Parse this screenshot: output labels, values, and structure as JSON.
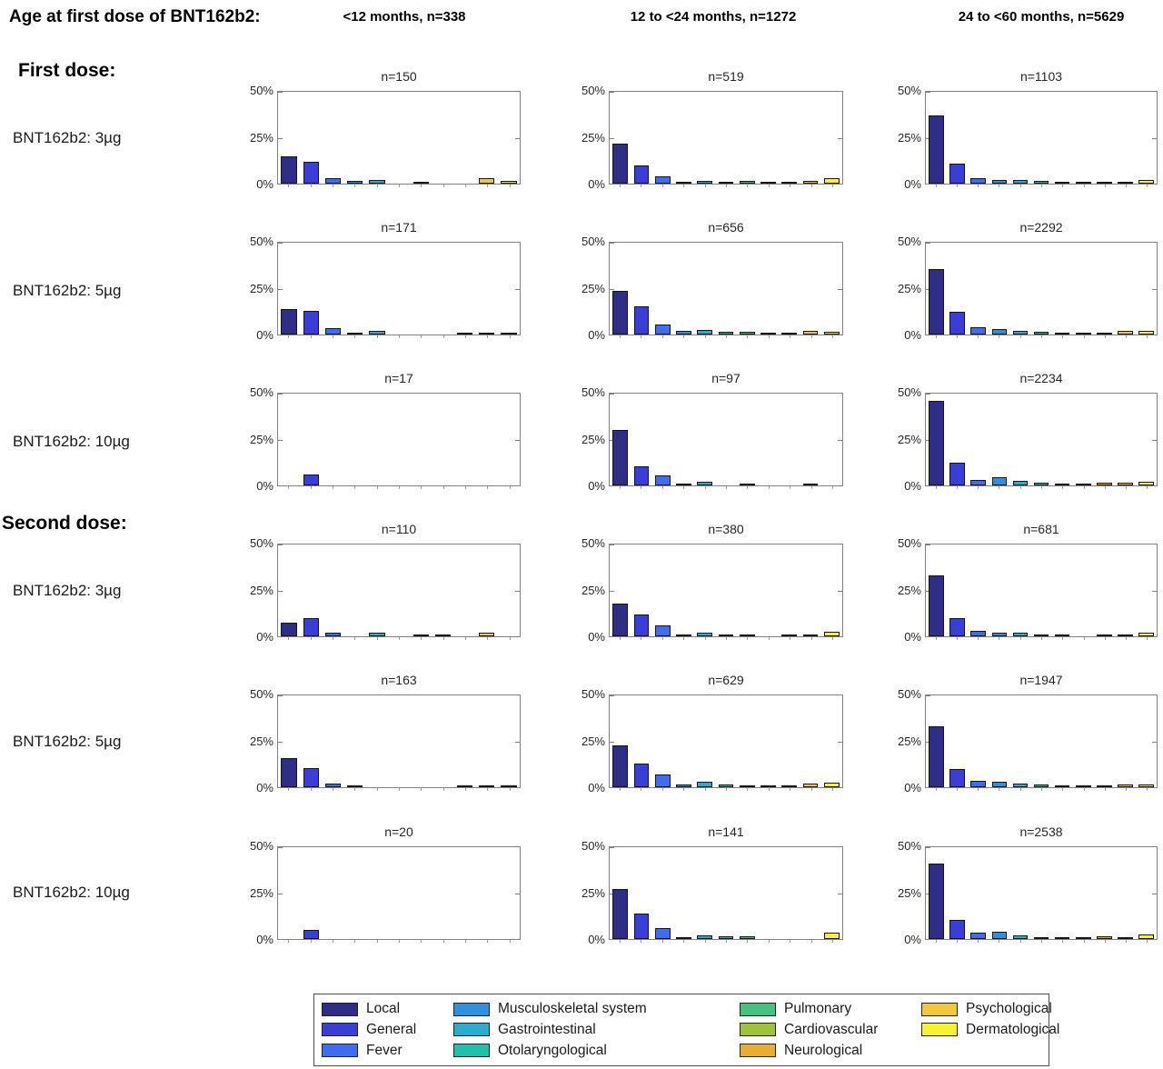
{
  "header": {
    "title": "Age at first dose of BNT162b2:",
    "columns": [
      "<12 months, n=338",
      "12 to <24 months, n=1272",
      "24 to <60 months, n=5629"
    ]
  },
  "chart_data": {
    "type": "bar",
    "title": "Age at first dose of BNT162b2:",
    "xlabel": "",
    "ylabel": "",
    "ylim": [
      0,
      50
    ],
    "yticks": [
      "0%",
      "25%",
      "50%"
    ],
    "grid": false,
    "legend_position": "bottom",
    "categories": [
      "Local",
      "General",
      "Fever",
      "Musculoskeletal system",
      "Gastrointestinal",
      "Otolaryngological",
      "Pulmonary",
      "Cardiovascular",
      "Neurological",
      "Psychological",
      "Dermatological"
    ],
    "colors": [
      "#2e2d87",
      "#3a3ed8",
      "#3e6df1",
      "#3090e0",
      "#2badd2",
      "#20c0ad",
      "#46c17e",
      "#a0c13a",
      "#e9ad31",
      "#f2c73c",
      "#f8f32f"
    ],
    "age_groups": [
      "<12 months, n=338",
      "12 to <24 months, n=1272",
      "24 to <60 months, n=5629"
    ],
    "sections": [
      {
        "label": "First dose:",
        "rows": [
          {
            "dose": "BNT162b2: 3µg",
            "panels": [
              {
                "n": "n=150",
                "values": [
                  15,
                  12,
                  3,
                  1.3,
                  2,
                  0,
                  0.7,
                  0,
                  0,
                  2.8,
                  1.3
                ]
              },
              {
                "n": "n=519",
                "values": [
                  22,
                  10,
                  4,
                  0.8,
                  1.5,
                  0.6,
                  1.7,
                  0.2,
                  0.4,
                  1.5,
                  3.1
                ]
              },
              {
                "n": "n=1103",
                "values": [
                  37,
                  11,
                  2.8,
                  2,
                  1.8,
                  1.3,
                  1,
                  0.3,
                  0.8,
                  1,
                  1.8
                ]
              }
            ]
          },
          {
            "dose": "BNT162b2: 5µg",
            "panels": [
              {
                "n": "n=171",
                "values": [
                  14,
                  13,
                  3.5,
                  1.2,
                  1.8,
                  0,
                  0,
                  0,
                  0.6,
                  1.2,
                  0.6
                ]
              },
              {
                "n": "n=656",
                "values": [
                  24,
                  15.5,
                  5.5,
                  2,
                  2.5,
                  1.7,
                  1.3,
                  0.3,
                  0.6,
                  1.8,
                  1.4
                ]
              },
              {
                "n": "n=2292",
                "values": [
                  35.5,
                  12.5,
                  4,
                  3.2,
                  2.2,
                  1.4,
                  1.2,
                  0.3,
                  1.1,
                  2,
                  1.8
                ]
              }
            ]
          },
          {
            "dose": "BNT162b2: 10µg",
            "panels": [
              {
                "n": "n=17",
                "values": [
                  0,
                  6,
                  0,
                  0,
                  0,
                  0,
                  0,
                  0,
                  0,
                  0,
                  0
                ]
              },
              {
                "n": "n=97",
                "values": [
                  30,
                  10.5,
                  5.5,
                  1,
                  2,
                  0,
                  1.2,
                  0,
                  0,
                  1.2,
                  0
                ]
              },
              {
                "n": "n=2234",
                "values": [
                  46,
                  12.5,
                  3,
                  4.3,
                  2.4,
                  1.6,
                  0.9,
                  0.4,
                  1.5,
                  1.3,
                  2.2
                ]
              }
            ]
          }
        ]
      },
      {
        "label": "Second dose:",
        "rows": [
          {
            "dose": "BNT162b2: 3µg",
            "panels": [
              {
                "n": "n=110",
                "values": [
                  7.5,
                  10,
                  1.8,
                  0,
                  1.8,
                  0,
                  1,
                  1,
                  0,
                  2,
                  0
                ]
              },
              {
                "n": "n=380",
                "values": [
                  18,
                  12,
                  6,
                  1.1,
                  1.8,
                  0.5,
                  0.8,
                  0,
                  0.5,
                  1,
                  2.6
                ]
              },
              {
                "n": "n=681",
                "values": [
                  33,
                  10,
                  3,
                  2.2,
                  2,
                  1,
                  0.4,
                  0,
                  0.7,
                  1.2,
                  1.9
                ]
              }
            ]
          },
          {
            "dose": "BNT162b2: 5µg",
            "panels": [
              {
                "n": "n=163",
                "values": [
                  16,
                  10.5,
                  1.8,
                  1.2,
                  0,
                  0,
                  0,
                  0,
                  0.6,
                  1.2,
                  0.6
                ]
              },
              {
                "n": "n=629",
                "values": [
                  23,
                  13,
                  7,
                  1.4,
                  2.8,
                  1.3,
                  1,
                  0.5,
                  0.2,
                  1.8,
                  2.4
                ]
              },
              {
                "n": "n=1947",
                "values": [
                  33,
                  10,
                  3.5,
                  2.8,
                  2,
                  1.4,
                  0.8,
                  0.2,
                  1,
                  1.5,
                  1.4
                ]
              }
            ]
          },
          {
            "dose": "BNT162b2: 10µg",
            "panels": [
              {
                "n": "n=20",
                "values": [
                  0,
                  5,
                  0,
                  0,
                  0,
                  0,
                  0,
                  0,
                  0,
                  0,
                  0
                ]
              },
              {
                "n": "n=141",
                "values": [
                  27,
                  14,
                  6,
                  0.9,
                  2.2,
                  1.5,
                  1.4,
                  0,
                  0,
                  0,
                  3.5
                ]
              },
              {
                "n": "n=2538",
                "values": [
                  41,
                  10.5,
                  3.5,
                  3.8,
                  2.2,
                  1.2,
                  1.1,
                  0.4,
                  1.4,
                  1.1,
                  2.4
                ]
              }
            ]
          }
        ]
      }
    ]
  }
}
